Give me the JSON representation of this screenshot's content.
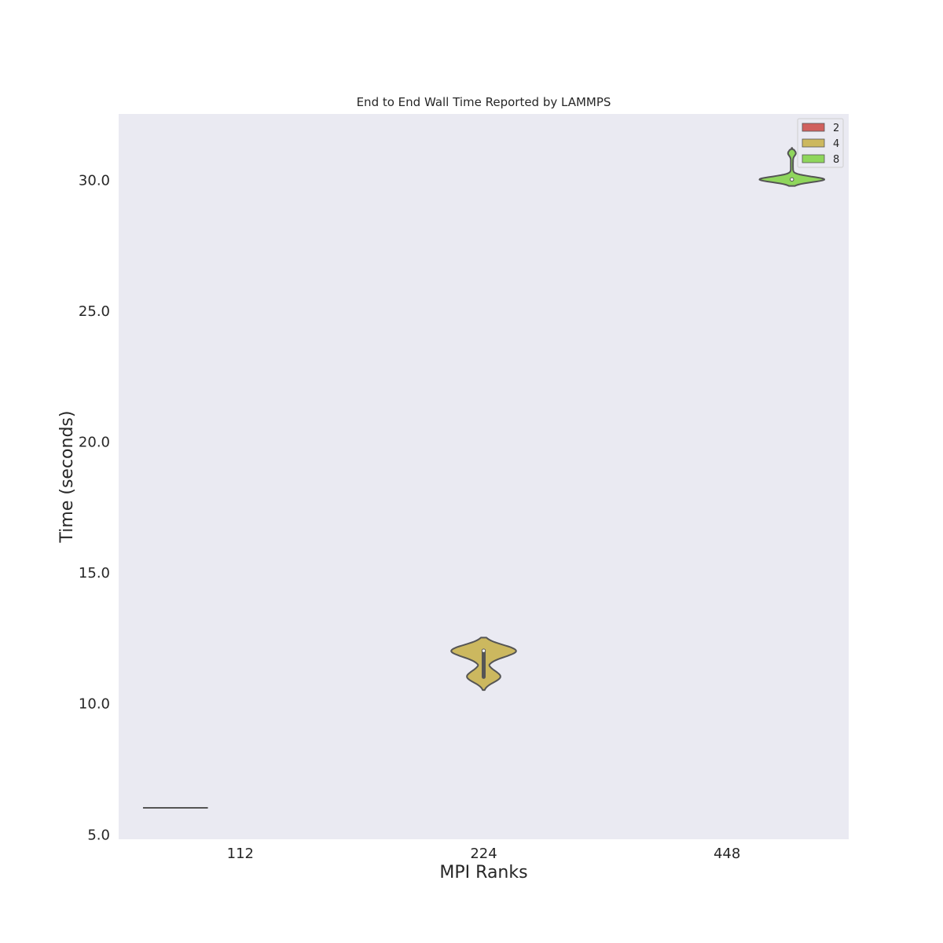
{
  "chart_data": {
    "type": "violin",
    "title": "End to End Wall Time Reported by LAMMPS",
    "xlabel": "MPI Ranks",
    "ylabel": "Time (seconds)",
    "categories": [
      "112",
      "224",
      "448"
    ],
    "ylim": [
      4.8,
      32.5
    ],
    "yticks": [
      5.0,
      10.0,
      15.0,
      20.0,
      25.0,
      30.0
    ],
    "ytick_labels": [
      "5.0",
      "10.0",
      "15.0",
      "20.0",
      "25.0",
      "30.0"
    ],
    "grid": false,
    "legend_position": "top-right",
    "series": [
      {
        "name": "2",
        "color": "#d0605e",
        "category": "112",
        "min": 6.0,
        "max": 6.0,
        "median": 6.0,
        "q1": 6.0,
        "q3": 6.0
      },
      {
        "name": "4",
        "color": "#ccb85f",
        "category": "224",
        "min": 10.5,
        "max": 12.5,
        "median": 12.0,
        "q1": 11.0,
        "q3": 12.0
      },
      {
        "name": "8",
        "color": "#8fd65c",
        "category": "448",
        "min": 29.75,
        "max": 31.2,
        "median": 30.0,
        "q1": 30.0,
        "q3": 30.0
      }
    ]
  },
  "colors": {
    "plot_background": "#eaeaf2",
    "outline": "#555555"
  }
}
